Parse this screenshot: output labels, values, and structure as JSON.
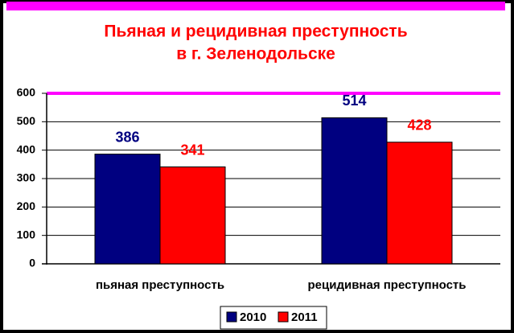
{
  "chart_data": {
    "type": "bar",
    "title": [
      "Пьяная и рецидивная преступность",
      "в г. Зеленодольске"
    ],
    "categories": [
      "пьяная преступность",
      "рецидивная преступность"
    ],
    "series": [
      {
        "name": "2010",
        "color": "#000080",
        "values": [
          386,
          514
        ]
      },
      {
        "name": "2011",
        "color": "#ff0000",
        "values": [
          341,
          428
        ]
      }
    ],
    "ylim": [
      0,
      600
    ],
    "yticks": [
      0,
      100,
      200,
      300,
      400,
      500,
      600
    ],
    "grid": true
  }
}
